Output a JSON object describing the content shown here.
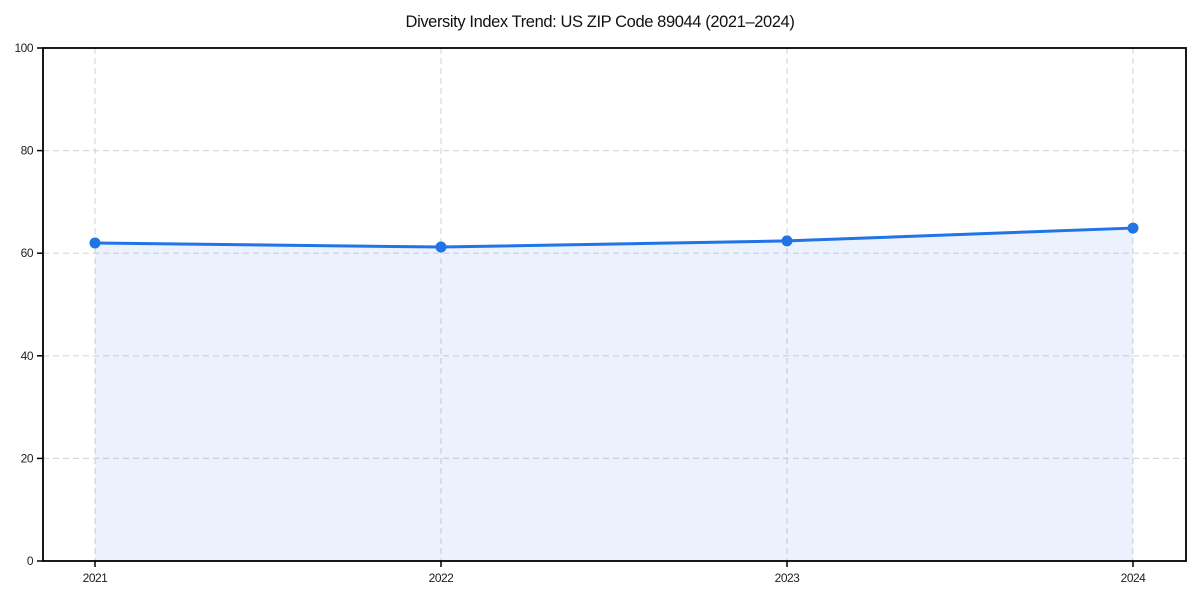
{
  "chart_data": {
    "type": "line",
    "title": "Diversity Index Trend: US ZIP Code 89044 (2021–2024)",
    "x": [
      "2021",
      "2022",
      "2023",
      "2024"
    ],
    "series": [
      {
        "name": "Diversity Index",
        "values": [
          62.0,
          61.2,
          62.4,
          64.9
        ]
      }
    ],
    "xlabel": "",
    "ylabel": "",
    "ylim": [
      0,
      100
    ],
    "yticks": [
      0,
      20,
      40,
      60,
      80,
      100
    ],
    "grid": "dashed, both axes",
    "legend": "none",
    "area_fill": true,
    "markers": true,
    "colors": {
      "line": "#2173e6",
      "marker": "#2173e6",
      "fill": "#e9f1fc",
      "grid": "#d9d9d9",
      "axis": "#000000",
      "title_text": "#111111",
      "tick_text": "#222222",
      "background": "#ffffff"
    }
  }
}
